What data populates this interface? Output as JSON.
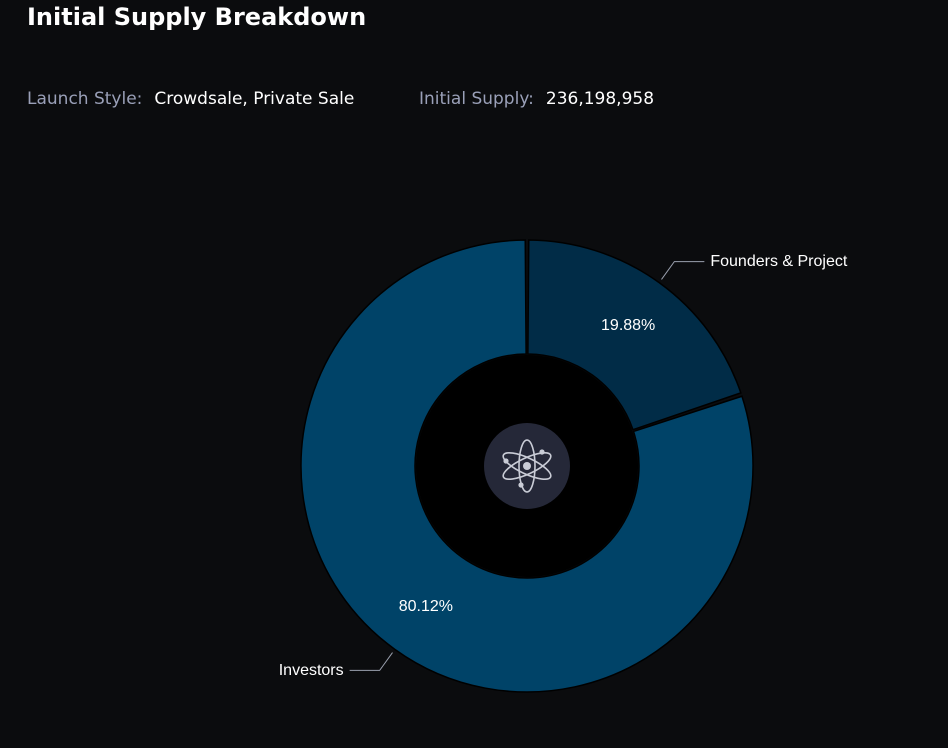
{
  "header": {
    "title": "Initial Supply Breakdown",
    "launch_style_label": "Launch Style:",
    "launch_style_value": "Crowdsale, Private Sale",
    "initial_supply_label": "Initial Supply:",
    "initial_supply_value": "236,198,958"
  },
  "chart_data": {
    "type": "pie",
    "variant": "donut",
    "title": "",
    "slices": [
      {
        "name": "Founders & Project",
        "value": 19.88,
        "label": "19.88%",
        "color": "#012c47"
      },
      {
        "name": "Investors",
        "value": 80.12,
        "label": "80.12%",
        "color": "#004368"
      }
    ],
    "center_icon": "atom-icon",
    "legend": "none",
    "colors": {
      "background": "#0b0c0e",
      "hole": "#000000",
      "icon_badge": "#252838",
      "leader_line": "#9aa0ae"
    }
  }
}
